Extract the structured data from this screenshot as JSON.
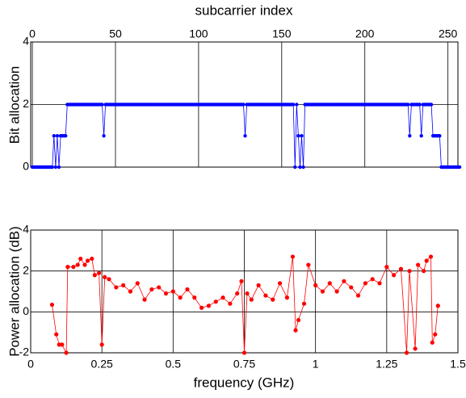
{
  "chart_data": [
    {
      "type": "scatter-line",
      "title": "subcarrier index",
      "ylabel": "Bit allocation",
      "color": "#0000ff",
      "grid": true,
      "xlim": [
        -1,
        256
      ],
      "xticks": [
        0,
        50,
        100,
        150,
        200,
        250
      ],
      "ylim": [
        0,
        4
      ],
      "yticks": [
        0,
        2,
        4
      ],
      "values": [
        0,
        0,
        0,
        0,
        0,
        0,
        0,
        0,
        0,
        0,
        0,
        0,
        0,
        1,
        0,
        1,
        0,
        1,
        1,
        1,
        1,
        2,
        2,
        2,
        2,
        2,
        2,
        2,
        2,
        2,
        2,
        2,
        2,
        2,
        2,
        2,
        2,
        2,
        2,
        2,
        2,
        2,
        2,
        1,
        2,
        2,
        2,
        2,
        2,
        2,
        2,
        2,
        2,
        2,
        2,
        2,
        2,
        2,
        2,
        2,
        2,
        2,
        2,
        2,
        2,
        2,
        2,
        2,
        2,
        2,
        2,
        2,
        2,
        2,
        2,
        2,
        2,
        2,
        2,
        2,
        2,
        2,
        2,
        2,
        2,
        2,
        2,
        2,
        2,
        2,
        2,
        2,
        2,
        2,
        2,
        2,
        2,
        2,
        2,
        2,
        2,
        2,
        2,
        2,
        2,
        2,
        2,
        2,
        2,
        2,
        2,
        2,
        2,
        2,
        2,
        2,
        2,
        2,
        2,
        2,
        2,
        2,
        2,
        2,
        2,
        2,
        2,
        2,
        1,
        2,
        2,
        2,
        2,
        2,
        2,
        2,
        2,
        2,
        2,
        2,
        2,
        2,
        2,
        2,
        2,
        2,
        2,
        2,
        2,
        2,
        2,
        2,
        2,
        2,
        2,
        2,
        2,
        2,
        0,
        2,
        1,
        0,
        1,
        0,
        2,
        2,
        2,
        2,
        2,
        2,
        2,
        2,
        2,
        2,
        2,
        2,
        2,
        2,
        2,
        2,
        2,
        2,
        2,
        2,
        2,
        2,
        2,
        2,
        2,
        2,
        2,
        2,
        2,
        2,
        2,
        2,
        2,
        2,
        2,
        2,
        2,
        2,
        2,
        2,
        2,
        2,
        2,
        2,
        2,
        2,
        2,
        2,
        2,
        2,
        2,
        2,
        2,
        2,
        2,
        2,
        2,
        2,
        2,
        2,
        2,
        2,
        2,
        1,
        2,
        2,
        2,
        2,
        2,
        2,
        1,
        2,
        2,
        2,
        2,
        2,
        2,
        1,
        1,
        1,
        1,
        1,
        0,
        0,
        0,
        0,
        0,
        0,
        0,
        0,
        0,
        0,
        0,
        0
      ]
    },
    {
      "type": "scatter-line",
      "xlabel": "frequency (GHz)",
      "ylabel": "Power allocation (dB)",
      "color": "#ff0000",
      "grid": true,
      "xlim": [
        0,
        1.5
      ],
      "xticks": [
        0,
        0.25,
        0.5,
        0.75,
        1,
        1.25,
        1.5
      ],
      "ylim": [
        -2,
        4
      ],
      "yticks": [
        -2,
        0,
        2,
        4
      ],
      "x": [
        0.075,
        0.09,
        0.1,
        0.11,
        0.125,
        0.13,
        0.15,
        0.165,
        0.175,
        0.19,
        0.2,
        0.215,
        0.225,
        0.24,
        0.25,
        0.26,
        0.275,
        0.3,
        0.325,
        0.35,
        0.375,
        0.4,
        0.425,
        0.45,
        0.475,
        0.5,
        0.525,
        0.55,
        0.575,
        0.6,
        0.625,
        0.65,
        0.675,
        0.7,
        0.725,
        0.74,
        0.75,
        0.76,
        0.775,
        0.8,
        0.825,
        0.85,
        0.875,
        0.9,
        0.92,
        0.93,
        0.94,
        0.96,
        0.975,
        1.0,
        1.025,
        1.05,
        1.075,
        1.1,
        1.125,
        1.15,
        1.175,
        1.2,
        1.225,
        1.25,
        1.275,
        1.3,
        1.32,
        1.33,
        1.35,
        1.36,
        1.38,
        1.39,
        1.405,
        1.41,
        1.42,
        1.43
      ],
      "values": [
        0.35,
        -1.1,
        -1.6,
        -1.6,
        -2,
        2.2,
        2.2,
        2.3,
        2.6,
        2.3,
        2.5,
        2.6,
        1.8,
        1.9,
        -1.6,
        1.7,
        1.6,
        1.2,
        1.3,
        1.0,
        1.4,
        0.6,
        1.1,
        1.2,
        0.9,
        1.0,
        0.7,
        1.1,
        0.7,
        0.2,
        0.3,
        0.5,
        0.7,
        0.4,
        0.9,
        1.5,
        -2,
        0.9,
        0.6,
        1.3,
        0.8,
        0.6,
        1.4,
        0.7,
        2.7,
        -0.9,
        -0.4,
        0.4,
        2.3,
        1.3,
        1.0,
        1.4,
        1.0,
        1.5,
        1.2,
        0.8,
        1.4,
        1.6,
        1.4,
        2.2,
        1.8,
        2.1,
        -2,
        2.0,
        -1.8,
        2.3,
        2.0,
        2.5,
        2.7,
        -1.5,
        -1.1,
        0.3
      ]
    }
  ]
}
